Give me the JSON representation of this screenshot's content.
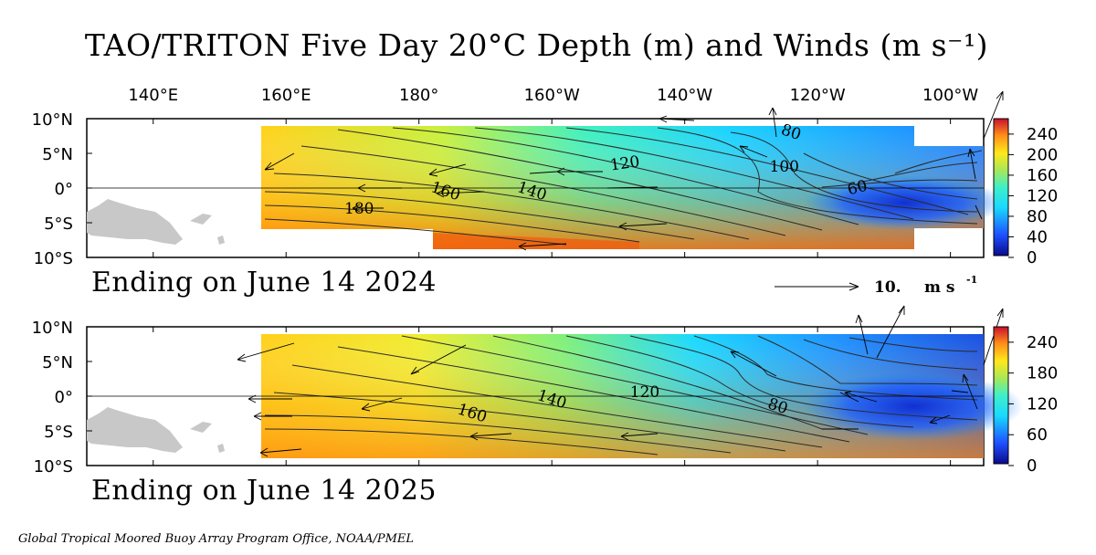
{
  "title": "TAO/TRITON Five Day 20°C Depth (m) and Winds (m s⁻¹)",
  "footer": "Global Tropical Moored Buoy Array Program Office, NOAA/PMEL",
  "reference_vector": {
    "value": "10.",
    "unit": "m s",
    "unit_exp": "-1"
  },
  "x_ticks": [
    "140°E",
    "160°E",
    "180°",
    "160°W",
    "140°W",
    "120°W",
    "100°W"
  ],
  "y_ticks": [
    "10°N",
    "5°N",
    "0°",
    "5°S",
    "10°S"
  ],
  "colors": {
    "deep_red": "#c8102e",
    "orange": "#ff8c1a",
    "yellow": "#ffe81a",
    "green": "#a6e85a",
    "cyan": "#19d9ff",
    "blue": "#1e6cff",
    "navy": "#1414a0",
    "land": "#c8c8c8"
  },
  "chart_data": [
    {
      "type": "heatmap",
      "subtitle": "Ending on June 14 2024",
      "variable": "20°C Depth (m)",
      "x_range_lon_east": [
        130,
        265
      ],
      "y_range_lat": [
        -10,
        10
      ],
      "colorbar_ticks": [
        0,
        40,
        80,
        120,
        160,
        200,
        240
      ],
      "contour_labels": [
        {
          "value": "180",
          "lon": 171,
          "lat": -3
        },
        {
          "value": "160",
          "lon": 184,
          "lat": -0.5
        },
        {
          "value": "140",
          "lon": 197,
          "lat": -0.5
        },
        {
          "value": "120",
          "lon": 211,
          "lat": 3.5
        },
        {
          "value": "100",
          "lon": 235,
          "lat": 3
        },
        {
          "value": "80",
          "lon": 236,
          "lat": 8
        },
        {
          "value": "60",
          "lon": 246,
          "lat": 0
        }
      ],
      "depth_profile_west_to_east": [
        {
          "lon": 160,
          "depth": [
            145,
            160,
            175,
            190,
            200
          ]
        },
        {
          "lon": 190,
          "depth": [
            135,
            145,
            160,
            180,
            215
          ]
        },
        {
          "lon": 220,
          "depth": [
            105,
            100,
            110,
            140,
            170
          ]
        },
        {
          "lon": 250,
          "depth": [
            85,
            75,
            65,
            70,
            120
          ]
        }
      ]
    },
    {
      "type": "heatmap",
      "subtitle": "Ending on June 14 2025",
      "variable": "20°C Depth (m)",
      "x_range_lon_east": [
        130,
        265
      ],
      "y_range_lat": [
        -10,
        10
      ],
      "colorbar_ticks": [
        0,
        60,
        120,
        180,
        240
      ],
      "contour_labels": [
        {
          "value": "160",
          "lon": 188,
          "lat": -2.5
        },
        {
          "value": "140",
          "lon": 200,
          "lat": -0.5
        },
        {
          "value": "120",
          "lon": 214,
          "lat": 0.5
        },
        {
          "value": "80",
          "lon": 234,
          "lat": -1.5
        }
      ],
      "depth_profile_west_to_east": [
        {
          "lon": 160,
          "depth": [
            160,
            175,
            185,
            195,
            200
          ]
        },
        {
          "lon": 190,
          "depth": [
            140,
            155,
            165,
            180,
            200
          ]
        },
        {
          "lon": 220,
          "depth": [
            95,
            105,
            115,
            130,
            160
          ]
        },
        {
          "lon": 250,
          "depth": [
            70,
            60,
            50,
            65,
            130
          ]
        }
      ]
    }
  ]
}
